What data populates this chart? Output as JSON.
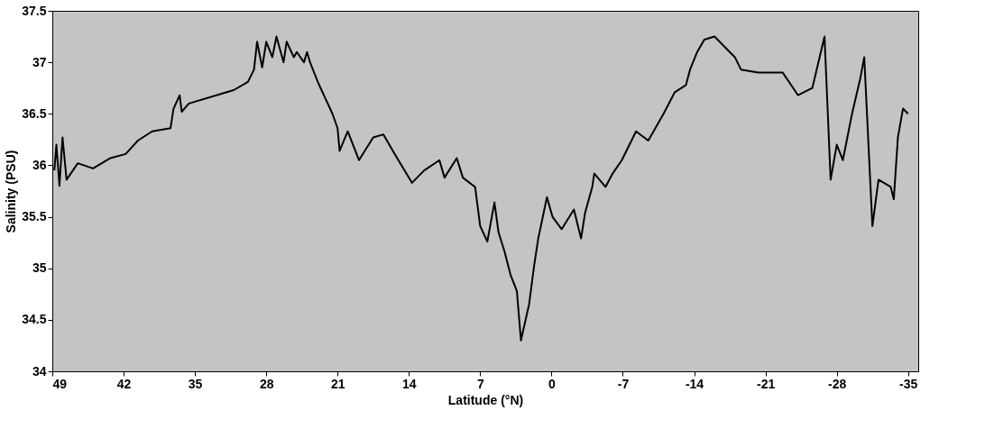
{
  "chart_data": {
    "type": "line",
    "xlabel": "Latitude (°N)",
    "ylabel": "Salinity (PSU)",
    "xlim": [
      49,
      -36
    ],
    "xticks": [
      49,
      42,
      35,
      28,
      21,
      14,
      7,
      0,
      -7,
      -14,
      -21,
      -28,
      -35
    ],
    "ylim": [
      34,
      37.5
    ],
    "yticks": [
      34,
      34.5,
      35,
      35.5,
      36,
      36.5,
      37,
      37.5
    ],
    "series": [
      {
        "color": "#000000",
        "x": [
          48.8,
          48.6,
          48.3,
          48.0,
          47.6,
          46.5,
          45.0,
          43.3,
          41.8,
          40.6,
          39.2,
          37.4,
          37.1,
          36.5,
          36.3,
          35.6,
          31.2,
          29.8,
          29.2,
          28.9,
          28.4,
          28.0,
          27.4,
          27.0,
          26.3,
          26.0,
          25.3,
          25.0,
          24.3,
          24.0,
          23.7,
          22.9,
          22.2,
          21.5,
          21.0,
          20.8,
          20.0,
          18.9,
          17.5,
          16.5,
          15.4,
          13.7,
          12.5,
          11.0,
          10.5,
          9.3,
          8.7,
          7.5,
          7.0,
          6.3,
          5.6,
          5.2,
          4.6,
          4.0,
          3.4,
          3.0,
          2.2,
          1.7,
          1.3,
          0.45,
          -0.1,
          -1.0,
          -2.2,
          -2.9,
          -3.3,
          -4.0,
          -4.2,
          -5.3,
          -6.0,
          -6.9,
          -8.3,
          -9.5,
          -11.0,
          -12.1,
          -13.2,
          -13.6,
          -14.3,
          -15.0,
          -16.0,
          -17.0,
          -18.0,
          -18.6,
          -20.3,
          -22.7,
          -24.2,
          -25.6,
          -26.8,
          -27.4,
          -28.0,
          -28.6,
          -29.5,
          -30.3,
          -30.7,
          -31.5,
          -32.1,
          -33.3,
          -33.6,
          -34.0,
          -34.5,
          -35.0
        ],
        "values": [
          35.95,
          36.2,
          35.8,
          36.27,
          35.86,
          36.02,
          35.97,
          36.07,
          36.11,
          36.24,
          36.33,
          36.36,
          36.55,
          36.68,
          36.52,
          36.6,
          36.73,
          36.81,
          36.93,
          37.2,
          36.95,
          37.2,
          37.05,
          37.25,
          37.0,
          37.2,
          37.05,
          37.1,
          37.0,
          37.1,
          37.0,
          36.8,
          36.65,
          36.5,
          36.36,
          36.14,
          36.33,
          36.05,
          36.27,
          36.3,
          36.11,
          35.83,
          35.95,
          36.05,
          35.88,
          36.07,
          35.88,
          35.79,
          35.41,
          35.26,
          35.64,
          35.35,
          35.16,
          34.93,
          34.78,
          34.3,
          34.65,
          35.03,
          35.29,
          35.69,
          35.5,
          35.38,
          35.57,
          35.29,
          35.54,
          35.79,
          35.92,
          35.79,
          35.92,
          36.05,
          36.33,
          36.24,
          36.5,
          36.71,
          36.78,
          36.93,
          37.1,
          37.22,
          37.25,
          37.15,
          37.05,
          36.93,
          36.9,
          36.9,
          36.68,
          36.75,
          37.25,
          35.86,
          36.2,
          36.05,
          36.5,
          36.84,
          37.05,
          35.41,
          35.86,
          35.79,
          35.67,
          36.27,
          36.55,
          36.5
        ]
      }
    ],
    "grid": false
  }
}
